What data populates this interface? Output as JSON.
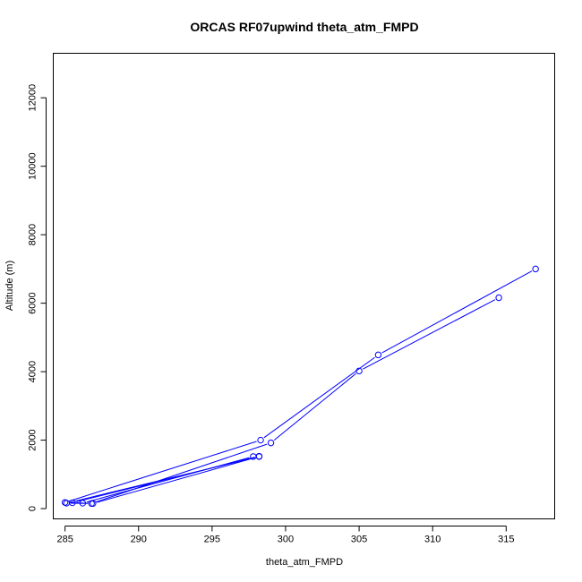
{
  "chart_data": {
    "type": "line",
    "title": "ORCAS RF07upwind theta_atm_FMPD",
    "xlabel": "theta_atm_FMPD",
    "ylabel": "Altitude (m)",
    "xlim": [
      284.2,
      318.3
    ],
    "ylim": [
      -300,
      13300
    ],
    "xticks": [
      285,
      290,
      295,
      300,
      305,
      310,
      315
    ],
    "yticks": [
      0,
      2000,
      4000,
      6000,
      8000,
      10000,
      12000
    ],
    "grid": false,
    "legend": "none",
    "series": [
      {
        "color": "#0000ff",
        "marker": "open-circle",
        "points": [
          [
            317.0,
            7000
          ],
          [
            306.3,
            4490
          ],
          [
            298.3,
            2000
          ],
          [
            285.0,
            180
          ],
          [
            286.2,
            160
          ],
          [
            297.8,
            1520
          ],
          [
            298.2,
            1530
          ],
          [
            285.5,
            170
          ],
          [
            286.9,
            150
          ],
          [
            298.2,
            1520
          ],
          [
            285.1,
            160
          ],
          [
            286.8,
            150
          ],
          [
            299.0,
            1920
          ],
          [
            305.0,
            4020
          ],
          [
            314.5,
            6160
          ]
        ]
      }
    ]
  }
}
